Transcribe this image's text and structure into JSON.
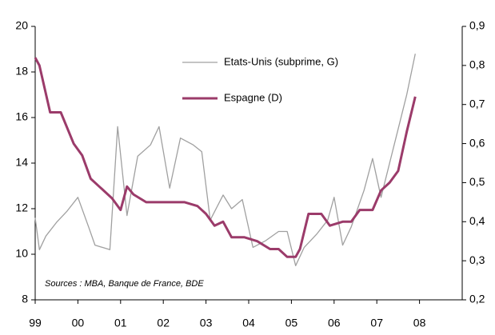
{
  "chart_data": {
    "type": "line",
    "annotation": "Sources : MBA, Banque de France, BDE",
    "xlim": [
      1999,
      2009
    ],
    "xticks": [
      {
        "value": 1999,
        "label": "99"
      },
      {
        "value": 2000,
        "label": "00"
      },
      {
        "value": 2001,
        "label": "01"
      },
      {
        "value": 2002,
        "label": "02"
      },
      {
        "value": 2003,
        "label": "03"
      },
      {
        "value": 2004,
        "label": "04"
      },
      {
        "value": 2005,
        "label": "05"
      },
      {
        "value": 2006,
        "label": "06"
      },
      {
        "value": 2007,
        "label": "07"
      },
      {
        "value": 2008,
        "label": "08"
      }
    ],
    "ylim": [
      8,
      20
    ],
    "yticks": [
      8,
      10,
      12,
      14,
      16,
      18,
      20
    ],
    "y2lim": [
      0.2,
      0.9
    ],
    "y2ticks": [
      {
        "value": 0.2,
        "label": "0,2"
      },
      {
        "value": 0.3,
        "label": "0,3"
      },
      {
        "value": 0.4,
        "label": "0,4"
      },
      {
        "value": 0.5,
        "label": "0,5"
      },
      {
        "value": 0.6,
        "label": "0,6"
      },
      {
        "value": 0.7,
        "label": "0,7"
      },
      {
        "value": 0.8,
        "label": "0,8"
      },
      {
        "value": 0.9,
        "label": "0,9"
      }
    ],
    "grid": false,
    "series": [
      {
        "name": "Etats-Unis (subprime, G)",
        "color": "#a0a0a0",
        "axis": "y",
        "x": [
          1999.0,
          1999.1,
          1999.25,
          1999.5,
          1999.75,
          2000.0,
          2000.25,
          2000.4,
          2000.75,
          2000.93,
          2001.15,
          2001.4,
          2001.7,
          2001.9,
          2002.15,
          2002.4,
          2002.7,
          2002.9,
          2003.1,
          2003.4,
          2003.6,
          2003.85,
          2004.1,
          2004.4,
          2004.7,
          2004.9,
          2005.1,
          2005.3,
          2005.6,
          2005.85,
          2006.0,
          2006.2,
          2006.4,
          2006.7,
          2006.9,
          2007.1,
          2007.3,
          2007.5,
          2007.7,
          2007.9
        ],
        "values": [
          11.6,
          10.2,
          10.8,
          11.4,
          11.9,
          12.5,
          11.2,
          10.4,
          10.2,
          15.6,
          11.7,
          14.3,
          14.8,
          15.6,
          12.9,
          15.1,
          14.8,
          14.5,
          11.5,
          12.6,
          12.0,
          12.4,
          10.3,
          10.6,
          11.0,
          11.0,
          9.5,
          10.3,
          10.9,
          11.5,
          12.5,
          10.4,
          11.2,
          12.8,
          14.2,
          12.5,
          14.0,
          15.5,
          17.0,
          18.8
        ]
      },
      {
        "name": "Espagne (D)",
        "color": "#9b3b6a",
        "axis": "y2",
        "x": [
          1999.0,
          1999.1,
          1999.35,
          1999.6,
          1999.9,
          2000.1,
          2000.3,
          2000.5,
          2000.8,
          2001.0,
          2001.15,
          2001.3,
          2001.6,
          2002.0,
          2002.5,
          2002.8,
          2003.0,
          2003.2,
          2003.4,
          2003.6,
          2003.9,
          2004.2,
          2004.5,
          2004.7,
          2004.9,
          2005.1,
          2005.2,
          2005.4,
          2005.7,
          2005.9,
          2006.2,
          2006.4,
          2006.6,
          2006.9,
          2007.1,
          2007.3,
          2007.5,
          2007.7,
          2007.9
        ],
        "values": [
          0.82,
          0.8,
          0.68,
          0.68,
          0.6,
          0.57,
          0.51,
          0.49,
          0.46,
          0.43,
          0.49,
          0.47,
          0.45,
          0.45,
          0.45,
          0.44,
          0.42,
          0.39,
          0.4,
          0.36,
          0.36,
          0.35,
          0.33,
          0.33,
          0.31,
          0.31,
          0.33,
          0.42,
          0.42,
          0.39,
          0.4,
          0.4,
          0.43,
          0.43,
          0.48,
          0.5,
          0.53,
          0.63,
          0.72
        ]
      }
    ]
  }
}
